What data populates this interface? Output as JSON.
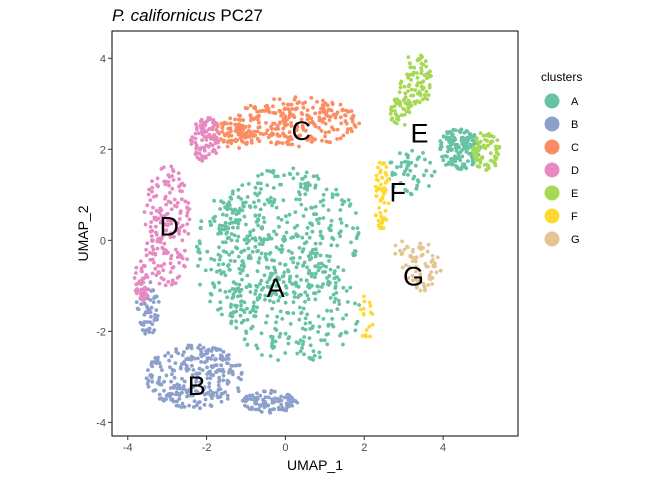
{
  "chart_data": {
    "type": "scatter",
    "title_italic": "P. californicus",
    "title_suffix": " PC27",
    "xlabel": "UMAP_1",
    "ylabel": "UMAP_2",
    "xlim": [
      -4.4,
      5.9
    ],
    "ylim": [
      -4.3,
      4.6
    ],
    "xticks": [
      -4,
      -2,
      0,
      2,
      4
    ],
    "yticks": [
      -4,
      -2,
      0,
      2,
      4
    ],
    "grid": false,
    "legend": {
      "title": "clusters",
      "placement": "right",
      "entries": [
        {
          "label": "A",
          "color": "#66C2A5"
        },
        {
          "label": "B",
          "color": "#8DA0CB"
        },
        {
          "label": "C",
          "color": "#FC8D62"
        },
        {
          "label": "D",
          "color": "#E78AC3"
        },
        {
          "label": "E",
          "color": "#A6D854"
        },
        {
          "label": "F",
          "color": "#FFD92F"
        },
        {
          "label": "G",
          "color": "#E5C494"
        }
      ]
    },
    "cluster_labels": [
      {
        "label": "A",
        "x": -0.25,
        "y": -1.05
      },
      {
        "label": "B",
        "x": -2.25,
        "y": -3.2
      },
      {
        "label": "C",
        "x": 0.4,
        "y": 2.4
      },
      {
        "label": "D",
        "x": -2.95,
        "y": 0.3
      },
      {
        "label": "E",
        "x": 3.4,
        "y": 2.35
      },
      {
        "label": "F",
        "x": 2.85,
        "y": 1.05
      },
      {
        "label": "G",
        "x": 3.25,
        "y": -0.8
      }
    ],
    "series": [
      {
        "name": "A",
        "color": "#66C2A5",
        "n": 900,
        "regions": [
          [
            0.0,
            0.1,
            1.9,
            1.5,
            1.0
          ],
          [
            0.2,
            -1.6,
            1.7,
            1.1,
            0.6
          ],
          [
            -1.3,
            -0.3,
            1.0,
            1.4,
            0.4
          ],
          [
            4.4,
            2.0,
            0.55,
            0.45,
            0.35
          ],
          [
            3.2,
            1.5,
            0.6,
            0.5,
            0.12
          ]
        ]
      },
      {
        "name": "B",
        "color": "#8DA0CB",
        "n": 420,
        "regions": [
          [
            -2.3,
            -3.0,
            1.25,
            0.7,
            1.0
          ],
          [
            -0.4,
            -3.55,
            0.7,
            0.25,
            0.35
          ],
          [
            -3.5,
            -1.5,
            0.3,
            0.6,
            0.25
          ]
        ]
      },
      {
        "name": "C",
        "color": "#FC8D62",
        "n": 330,
        "regions": [
          [
            0.3,
            2.6,
            1.6,
            0.55,
            1.0
          ],
          [
            -1.3,
            2.35,
            0.6,
            0.35,
            0.35
          ]
        ]
      },
      {
        "name": "D",
        "color": "#E78AC3",
        "n": 330,
        "regions": [
          [
            -3.0,
            0.3,
            0.6,
            1.35,
            1.0
          ],
          [
            -2.0,
            2.2,
            0.4,
            0.5,
            0.4
          ],
          [
            -3.65,
            -0.9,
            0.2,
            0.45,
            0.25
          ]
        ]
      },
      {
        "name": "E",
        "color": "#A6D854",
        "n": 190,
        "regions": [
          [
            3.3,
            3.5,
            0.45,
            0.6,
            0.6
          ],
          [
            5.1,
            1.95,
            0.35,
            0.45,
            0.5
          ],
          [
            2.9,
            2.8,
            0.3,
            0.4,
            0.25
          ]
        ]
      },
      {
        "name": "F",
        "color": "#FFD92F",
        "n": 75,
        "regions": [
          [
            2.45,
            1.0,
            0.2,
            0.85,
            1.0
          ],
          [
            2.05,
            -1.7,
            0.18,
            0.5,
            0.35
          ]
        ]
      },
      {
        "name": "G",
        "color": "#E5C494",
        "n": 70,
        "regions": [
          [
            3.5,
            -0.6,
            0.45,
            0.55,
            1.0
          ],
          [
            3.0,
            -0.3,
            0.3,
            0.3,
            0.4
          ]
        ]
      }
    ]
  }
}
